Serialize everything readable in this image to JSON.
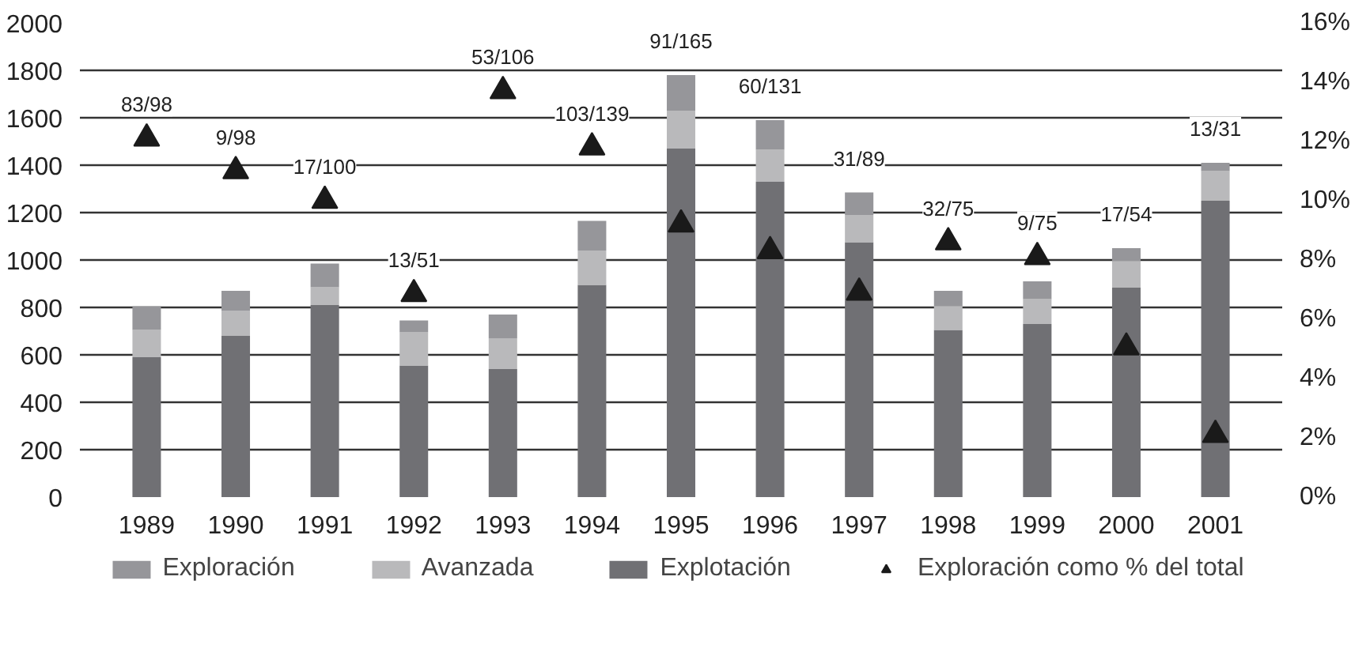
{
  "chart_data": {
    "type": "bar",
    "stacked": true,
    "categories": [
      "1989",
      "1990",
      "1991",
      "1992",
      "1993",
      "1994",
      "1995",
      "1996",
      "1997",
      "1998",
      "1999",
      "2000",
      "2001"
    ],
    "series": [
      {
        "name": "Explotación",
        "color": "#707074",
        "values": [
          590,
          680,
          810,
          555,
          540,
          895,
          1470,
          1330,
          1075,
          705,
          730,
          885,
          1250
        ]
      },
      {
        "name": "Avanzada",
        "color": "#b9b9bb",
        "values": [
          115,
          105,
          75,
          140,
          130,
          145,
          160,
          135,
          115,
          100,
          105,
          110,
          125
        ]
      },
      {
        "name": "Exploración",
        "color": "#96969a",
        "values": [
          100,
          85,
          100,
          50,
          100,
          125,
          150,
          125,
          95,
          65,
          75,
          55,
          35
        ]
      },
      {
        "name": "Exploración como % del total",
        "type": "scatter",
        "axis": "y2",
        "marker": "triangle",
        "color": "#1a1a1a",
        "values": [
          12.1,
          11.0,
          10.0,
          6.85,
          13.7,
          11.8,
          9.2,
          8.3,
          6.9,
          8.6,
          8.1,
          5.05,
          2.1
        ]
      }
    ],
    "ylim": [
      0,
      2000
    ],
    "yticks": [
      0,
      200,
      400,
      600,
      800,
      1000,
      1200,
      1400,
      1600,
      1800,
      2000
    ],
    "y2lim": [
      0,
      16
    ],
    "y2ticks": [
      {
        "value": 0,
        "label": "0%"
      },
      {
        "value": 2,
        "label": "2%"
      },
      {
        "value": 4,
        "label": "4%"
      },
      {
        "value": 6,
        "label": "6%"
      },
      {
        "value": 8,
        "label": "8%"
      },
      {
        "value": 10,
        "label": "10%"
      },
      {
        "value": 12,
        "label": "12%"
      },
      {
        "value": 14,
        "label": "14%"
      },
      {
        "value": 16,
        "label": "16%"
      }
    ],
    "grid": "y",
    "legend": "bottom",
    "annotations": [
      "83/98",
      "9/98",
      "17/100",
      "13/51",
      "53/106",
      "103/139",
      "91/165",
      "60/131",
      "31/89",
      "32/75",
      "9/75",
      "17/54",
      "13/31"
    ]
  }
}
